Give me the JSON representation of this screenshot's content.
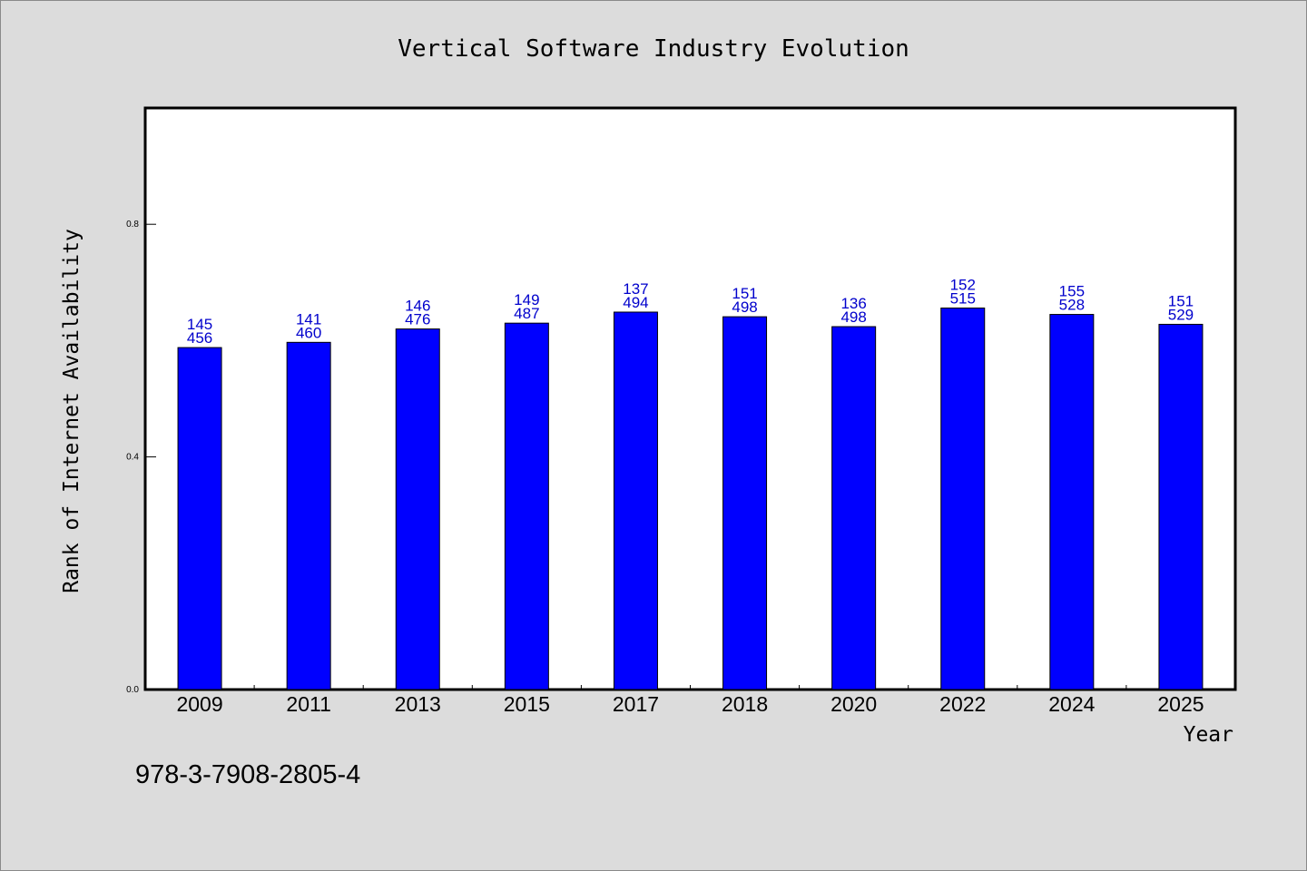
{
  "chart_data": {
    "type": "bar",
    "title": "Vertical Software Industry Evolution",
    "xlabel": "Year",
    "ylabel": "Rank of Internet Availability",
    "categories": [
      "2009",
      "2011",
      "2013",
      "2015",
      "2017",
      "2018",
      "2020",
      "2022",
      "2024",
      "2025"
    ],
    "values": [
      0.588,
      0.597,
      0.62,
      0.63,
      0.649,
      0.641,
      0.624,
      0.656,
      0.645,
      0.628
    ],
    "label_top": [
      "145",
      "141",
      "146",
      "149",
      "137",
      "151",
      "136",
      "152",
      "155",
      "151"
    ],
    "label_bottom": [
      "456",
      "460",
      "476",
      "487",
      "494",
      "498",
      "498",
      "515",
      "528",
      "529"
    ],
    "yticks": [
      "0.0",
      "0.4",
      "0.8"
    ],
    "ytick_values": [
      0.0,
      0.4,
      0.8
    ],
    "ylim": [
      0,
      1.0
    ],
    "grid": false,
    "legend": "none",
    "bar_color": "#0000ff",
    "label_color": "#0000cc"
  },
  "footnote": "978-3-7908-2805-4"
}
